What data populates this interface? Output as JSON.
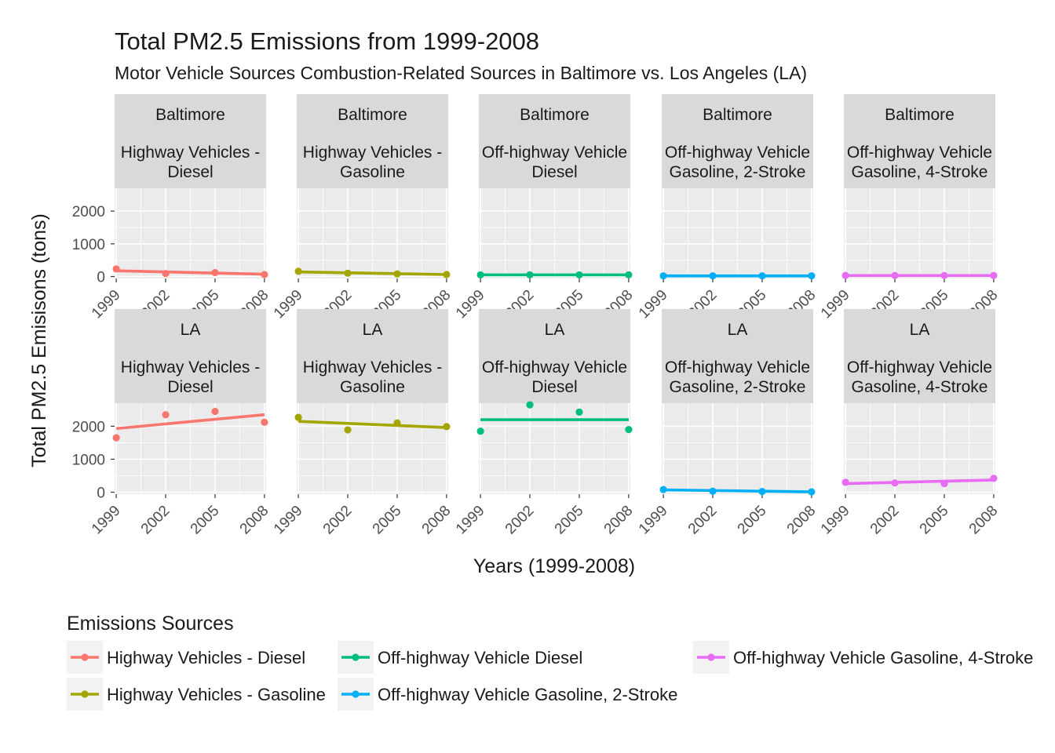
{
  "chart_data": {
    "type": "line",
    "title": "Total PM2.5 Emissions from 1999-2008",
    "subtitle": "Motor Vehicle Sources Combustion-Related Sources in Baltimore vs. Los Angeles (LA)",
    "xlabel": "Years (1999-2008)",
    "ylabel": "Total PM2.5 Emisisons (tons)",
    "x_ticks": [
      1999,
      2002,
      2005,
      2008
    ],
    "y_ticks": [
      0,
      1000,
      2000
    ],
    "xlim": [
      1998.9,
      2008.1
    ],
    "ylim": [
      -60,
      2700
    ],
    "grid": true,
    "legend": {
      "title": "Emissions Sources",
      "position": "bottom",
      "entries": [
        {
          "label": "Highway Vehicles - Diesel",
          "color": "#F8766D"
        },
        {
          "label": "Highway Vehicles - Gasoline",
          "color": "#A3A500"
        },
        {
          "label": "Off-highway Vehicle Diesel",
          "color": "#00BF7D"
        },
        {
          "label": "Off-highway Vehicle Gasoline, 2-Stroke",
          "color": "#00B0F6"
        },
        {
          "label": "Off-highway Vehicle Gasoline, 4-Stroke",
          "color": "#E76BF3"
        }
      ]
    },
    "x": [
      1999,
      2002,
      2005,
      2008
    ],
    "panels": [
      {
        "city": "Baltimore",
        "source_lines": [
          "Highway Vehicles -",
          "Diesel"
        ],
        "color": "#F8766D",
        "values": [
          230,
          90,
          120,
          60
        ],
        "fit": [
          175,
          70
        ]
      },
      {
        "city": "Baltimore",
        "source_lines": [
          "Highway Vehicles -",
          "Gasoline"
        ],
        "color": "#A3A500",
        "values": [
          160,
          100,
          80,
          60
        ],
        "fit": [
          140,
          60
        ]
      },
      {
        "city": "Baltimore",
        "source_lines": [
          "Off-highway Vehicle",
          "Diesel"
        ],
        "color": "#00BF7D",
        "values": [
          50,
          50,
          50,
          50
        ],
        "fit": [
          50,
          50
        ]
      },
      {
        "city": "Baltimore",
        "source_lines": [
          "Off-highway Vehicle",
          "Gasoline, 2-Stroke"
        ],
        "color": "#00B0F6",
        "values": [
          20,
          20,
          20,
          20
        ],
        "fit": [
          20,
          20
        ]
      },
      {
        "city": "Baltimore",
        "source_lines": [
          "Off-highway Vehicle",
          "Gasoline, 4-Stroke"
        ],
        "color": "#E76BF3",
        "values": [
          30,
          30,
          30,
          30
        ],
        "fit": [
          30,
          30
        ]
      },
      {
        "city": "LA",
        "source_lines": [
          "Highway Vehicles -",
          "Diesel"
        ],
        "color": "#F8766D",
        "values": [
          1650,
          2350,
          2450,
          2120
        ],
        "fit": [
          1930,
          2350
        ]
      },
      {
        "city": "LA",
        "source_lines": [
          "Highway Vehicles -",
          "Gasoline"
        ],
        "color": "#A3A500",
        "values": [
          2270,
          1890,
          2100,
          1990
        ],
        "fit": [
          2150,
          1960
        ]
      },
      {
        "city": "LA",
        "source_lines": [
          "Off-highway Vehicle",
          "Diesel"
        ],
        "color": "#00BF7D",
        "values": [
          1850,
          2650,
          2430,
          1900
        ],
        "fit": [
          2200,
          2200
        ]
      },
      {
        "city": "LA",
        "source_lines": [
          "Off-highway Vehicle",
          "Gasoline, 2-Stroke"
        ],
        "color": "#00B0F6",
        "values": [
          80,
          30,
          20,
          10
        ],
        "fit": [
          70,
          10
        ]
      },
      {
        "city": "LA",
        "source_lines": [
          "Off-highway Vehicle",
          "Gasoline, 4-Stroke"
        ],
        "color": "#E76BF3",
        "values": [
          300,
          280,
          260,
          420
        ],
        "fit": [
          260,
          370
        ]
      }
    ]
  }
}
